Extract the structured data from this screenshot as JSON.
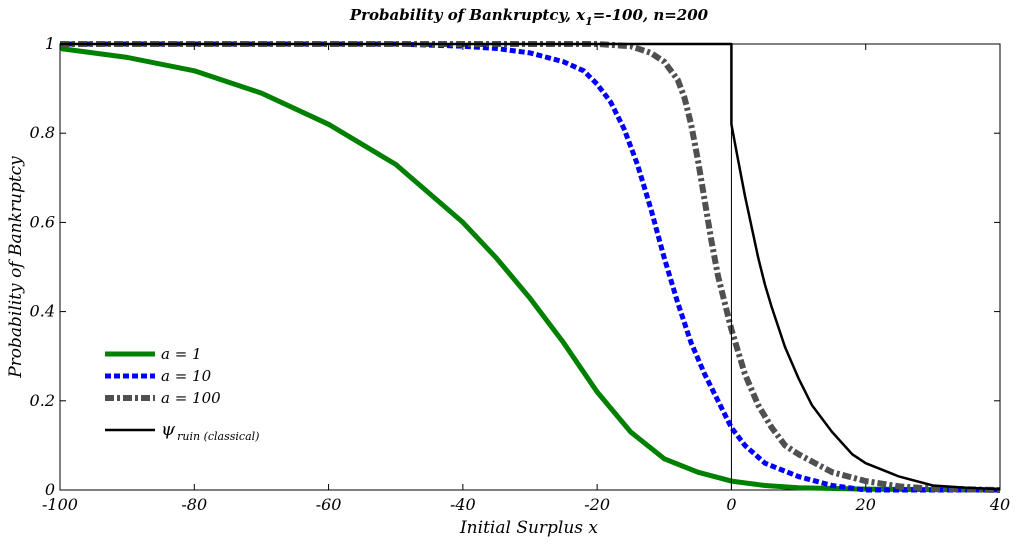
{
  "chart_data": {
    "type": "line",
    "title_parts": [
      "Probability of Bankruptcy, x",
      "1",
      "=-100, n=200"
    ],
    "xlabel": "Initial Surplus x",
    "ylabel": "Probability of Bankruptcy",
    "xlim": [
      -100,
      40
    ],
    "ylim": [
      0,
      1
    ],
    "xticks": [
      -100,
      -80,
      -60,
      -40,
      -20,
      0,
      20,
      40
    ],
    "yticks": [
      0,
      0.2,
      0.4,
      0.6,
      0.8,
      1
    ],
    "xtick_labels": [
      "-100",
      "-80",
      "-60",
      "-40",
      "-20",
      "0",
      "20",
      "40"
    ],
    "ytick_labels": [
      "0",
      "0.2",
      "0.4",
      "0.6",
      "0.8",
      "1"
    ],
    "vertical_line_at_x": 0,
    "grid": false,
    "legend_position": "lower-left",
    "series": [
      {
        "name": "a = 1",
        "color": "#008000",
        "style": "solid-thick",
        "x": [
          -100,
          -90,
          -80,
          -70,
          -60,
          -50,
          -40,
          -35,
          -30,
          -25,
          -20,
          -15,
          -10,
          -5,
          0,
          5,
          10,
          20,
          30,
          40
        ],
        "y": [
          0.99,
          0.97,
          0.94,
          0.89,
          0.82,
          0.73,
          0.6,
          0.52,
          0.43,
          0.33,
          0.22,
          0.13,
          0.07,
          0.04,
          0.02,
          0.01,
          0.005,
          0.002,
          0.001,
          0.0
        ]
      },
      {
        "name": "a = 10",
        "color": "#0000ff",
        "style": "dashed",
        "x": [
          -100,
          -50,
          -40,
          -35,
          -30,
          -25,
          -22,
          -20,
          -18,
          -16,
          -14,
          -12,
          -10,
          -8,
          -6,
          -4,
          -2,
          0,
          2,
          5,
          10,
          15,
          20,
          30,
          40
        ],
        "y": [
          1.0,
          1.0,
          0.995,
          0.99,
          0.98,
          0.96,
          0.94,
          0.91,
          0.87,
          0.81,
          0.73,
          0.63,
          0.52,
          0.42,
          0.33,
          0.26,
          0.2,
          0.14,
          0.1,
          0.06,
          0.03,
          0.01,
          0.0,
          0.0,
          0.0
        ]
      },
      {
        "name": "a = 100",
        "color": "#505050",
        "style": "dash-dot",
        "x": [
          -100,
          -20,
          -15,
          -12,
          -10,
          -9,
          -8,
          -7,
          -6,
          -5,
          -4,
          -3,
          -2,
          -1,
          0,
          2,
          4,
          6,
          8,
          10,
          15,
          20,
          25,
          30,
          40
        ],
        "y": [
          1.0,
          1.0,
          0.995,
          0.98,
          0.96,
          0.94,
          0.92,
          0.88,
          0.82,
          0.74,
          0.65,
          0.56,
          0.48,
          0.42,
          0.36,
          0.26,
          0.19,
          0.14,
          0.1,
          0.08,
          0.04,
          0.02,
          0.008,
          0.003,
          0.0
        ]
      },
      {
        "name": "ψ",
        "name_sub": "ruin (classical)",
        "color": "#000000",
        "style": "solid-thin",
        "x": [
          -100,
          0,
          0,
          1,
          2,
          3,
          4,
          5,
          6,
          8,
          10,
          12,
          15,
          18,
          20,
          25,
          30,
          35,
          40
        ],
        "y": [
          1.0,
          1.0,
          0.82,
          0.74,
          0.66,
          0.59,
          0.52,
          0.46,
          0.41,
          0.32,
          0.25,
          0.19,
          0.13,
          0.08,
          0.06,
          0.03,
          0.01,
          0.005,
          0.002
        ]
      }
    ]
  }
}
